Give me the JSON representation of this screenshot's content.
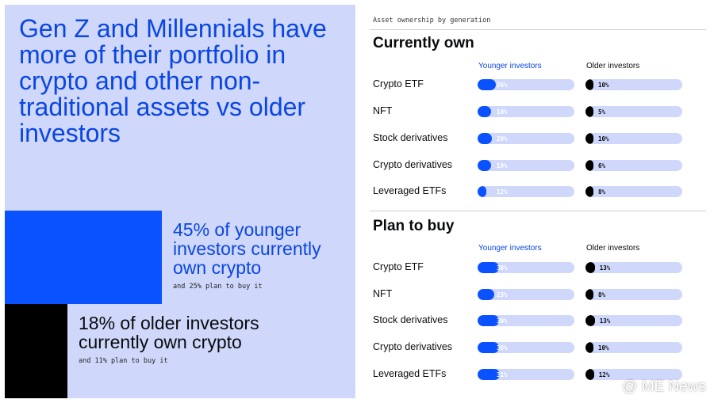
{
  "headline": "Gen Z and Millennials have more of their portfolio in crypto and other non-traditional assets vs older investors",
  "younger_stat": {
    "value": 45,
    "headline": "45% of younger investors currently own crypto",
    "subtext": "and 25% plan to buy it"
  },
  "older_stat": {
    "value": 18,
    "headline": "18% of older investors currently own crypto",
    "subtext": "and 11% plan to buy it"
  },
  "caption": "Asset ownership by generation",
  "watermark": "@ ME News",
  "colors": {
    "accent_blue": "#0a52ff",
    "title_blue": "#0a46e4",
    "light_blue": "#cfd8fb",
    "black": "#000000"
  },
  "chart_data": [
    {
      "type": "bar",
      "title": "Currently own",
      "categories": [
        "Crypto ETF",
        "NFT",
        "Stock derivatives",
        "Crypto derivatives",
        "Leveraged ETFs"
      ],
      "series": [
        {
          "name": "Younger investors",
          "values": [
            26,
            19,
            20,
            19,
            12
          ],
          "labels": [
            "26%",
            "19%",
            "20%",
            "19%",
            "12%"
          ]
        },
        {
          "name": "Older investors",
          "values": [
            10,
            5,
            10,
            6,
            8
          ],
          "labels": [
            "10%",
            "5%",
            "10%",
            "6%",
            "8%"
          ]
        }
      ],
      "ylim": [
        0,
        100
      ]
    },
    {
      "type": "bar",
      "title": "Plan to buy",
      "categories": [
        "Crypto ETF",
        "NFT",
        "Stock derivatives",
        "Crypto derivatives",
        "Leveraged ETFs"
      ],
      "series": [
        {
          "name": "Younger investors",
          "values": [
            30,
            23,
            30,
            30,
            31
          ],
          "labels": [
            "30%",
            "23%",
            "30%",
            "30%",
            "31%"
          ]
        },
        {
          "name": "Older investors",
          "values": [
            13,
            8,
            13,
            10,
            12
          ],
          "labels": [
            "13%",
            "8%",
            "13%",
            "10%",
            "12%"
          ]
        }
      ],
      "ylim": [
        0,
        100
      ]
    }
  ]
}
